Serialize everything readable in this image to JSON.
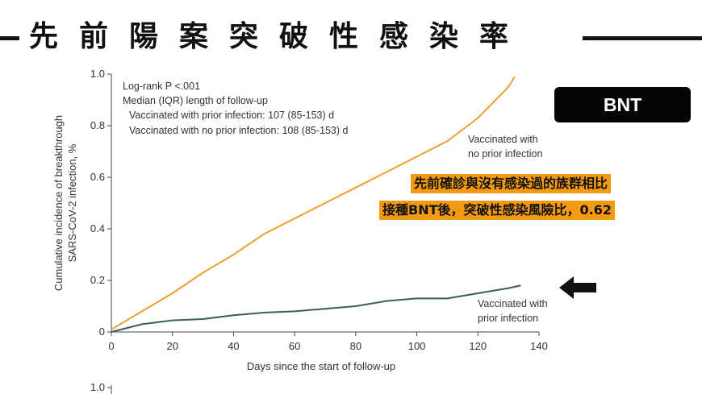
{
  "header": {
    "title": "先前陽案突破性感染率"
  },
  "badge": {
    "label": "BNT"
  },
  "callout": {
    "line1": "先前確診與沒有感染過的族群相比",
    "line2": "接種BNT後，突破性感染風險比，0.62"
  },
  "colors": {
    "no_prior_series": "#f0a030",
    "prior_series": "#3d5a66",
    "callout_bg": "#f39a12",
    "badge_bg": "#050505"
  },
  "icons": {
    "arrow": "arrow-left-icon"
  },
  "chart_data": {
    "type": "line",
    "xlabel": "Days since the start of follow-up",
    "ylabel_lines": [
      "Cumulative incidence of breakthrough",
      "SARS-CoV-2 infection, %"
    ],
    "xlim": [
      0,
      140
    ],
    "ylim": [
      0,
      1.0
    ],
    "x_ticks": [
      "0",
      "20",
      "40",
      "60",
      "80",
      "100",
      "120",
      "140"
    ],
    "y_ticks": [
      "0",
      "0.2",
      "0.4",
      "0.6",
      "0.8",
      "1.0"
    ],
    "next_panel_y_tick": "1.0",
    "stats_text": [
      "Log-rank P <.001",
      "Median (IQR) length of follow-up",
      "Vaccinated with prior infection: 107 (85-153) d",
      "Vaccinated with no prior infection: 108 (85-153) d"
    ],
    "series": [
      {
        "name": "Vaccinated with no prior infection",
        "label_lines": [
          "Vaccinated with",
          "no prior infection"
        ],
        "x": [
          0,
          10,
          20,
          30,
          40,
          50,
          60,
          70,
          80,
          90,
          100,
          110,
          120,
          125,
          130,
          132
        ],
        "y": [
          0.01,
          0.08,
          0.15,
          0.23,
          0.3,
          0.38,
          0.44,
          0.5,
          0.56,
          0.62,
          0.68,
          0.74,
          0.83,
          0.89,
          0.95,
          0.99
        ]
      },
      {
        "name": "Vaccinated with prior infection",
        "label_lines": [
          "Vaccinated with",
          "prior infection"
        ],
        "x": [
          0,
          10,
          20,
          30,
          40,
          50,
          60,
          70,
          80,
          90,
          100,
          110,
          120,
          130,
          134
        ],
        "y": [
          0.0,
          0.03,
          0.045,
          0.05,
          0.065,
          0.075,
          0.08,
          0.09,
          0.1,
          0.12,
          0.13,
          0.13,
          0.15,
          0.17,
          0.18
        ]
      }
    ]
  }
}
